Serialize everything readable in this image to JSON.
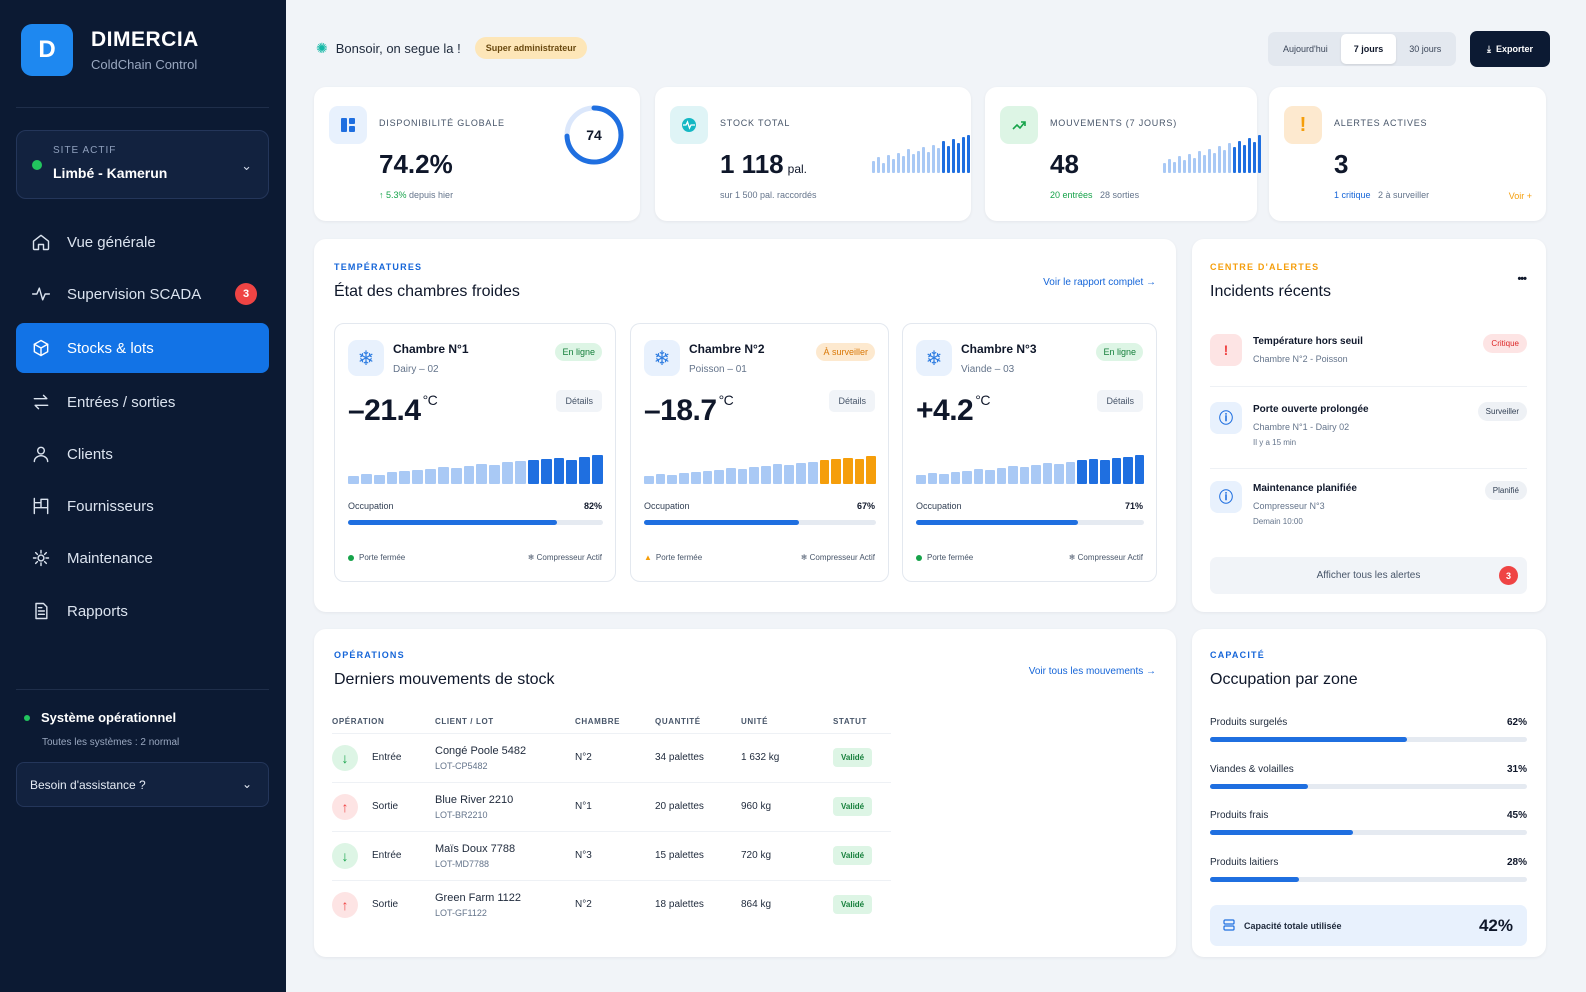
{
  "brand": {
    "name": "DIMERCIA",
    "subtitle": "ColdChain Control",
    "logo_letter": "D"
  },
  "site": {
    "label": "SITE ACTIF",
    "value": "Limbé - Kamerun"
  },
  "nav": [
    {
      "label": "Vue générale",
      "icon": "home-icon"
    },
    {
      "label": "Supervision SCADA",
      "icon": "pulse-icon",
      "badge": "3"
    },
    {
      "label": "Stocks & lots",
      "icon": "box-icon",
      "active": true
    },
    {
      "label": "Entrées / sorties",
      "icon": "arrows-swap-icon"
    },
    {
      "label": "Clients",
      "icon": "user-icon"
    },
    {
      "label": "Fournisseurs",
      "icon": "supplier-icon"
    },
    {
      "label": "Maintenance",
      "icon": "settings-icon"
    },
    {
      "label": "Rapports",
      "icon": "document-icon"
    }
  ],
  "system": {
    "title": "Système opérationnel",
    "subtitle": "Toutes les systèmes : 2 normal"
  },
  "help": {
    "label": "Besoin d'assistance ?"
  },
  "header": {
    "greeting": "Bonsoir, on segue la !",
    "role": "Super administrateur",
    "periods": [
      "Aujourd'hui",
      "7 jours",
      "30 jours"
    ],
    "active_period": "7 jours",
    "export": "Exporter"
  },
  "kpis": {
    "availability": {
      "title": "DISPONIBILITÉ GLOBALE",
      "value": "74.2%",
      "delta": "↑ 5.3%",
      "delta_text": "depuis hier",
      "ring_value": "74",
      "ring_fraction": 0.742
    },
    "stock": {
      "title": "STOCK TOTAL",
      "value": "1 118",
      "unit": "pal.",
      "sub": "sur 1 500 pal. raccordés"
    },
    "movements": {
      "title": "MOUVEMENTS (7 JOURS)",
      "value": "48",
      "in": "20 entrées",
      "out": "28 sorties"
    },
    "alerts": {
      "title": "ALERTES ACTIVES",
      "value": "3",
      "critical": "1 critique",
      "watch": "2 à surveiller",
      "link": "Voir +"
    }
  },
  "temperatures": {
    "tag": "TEMPÉRATURES",
    "title": "État des chambres froides",
    "link": "Voir le rapport complet →",
    "rooms": [
      {
        "name": "Chambre N°1",
        "sub": "Dairy – 02",
        "status": "En ligne",
        "temp": "–21.4",
        "unit": "°C",
        "details": "Détails",
        "occupation_label": "Occupation",
        "occupation": "82%",
        "occupation_fraction": 0.82,
        "door": "Porte fermée",
        "compressor": "❄ Compresseur Actif"
      },
      {
        "name": "Chambre N°2",
        "sub": "Poisson – 01",
        "status": "À surveiller",
        "temp": "–18.7",
        "unit": "°C",
        "details": "Détails",
        "occupation_label": "Occupation",
        "occupation": "67%",
        "occupation_fraction": 0.67,
        "door": "Porte fermée",
        "compressor": "❄ Compresseur Actif"
      },
      {
        "name": "Chambre N°3",
        "sub": "Viande – 03",
        "status": "En ligne",
        "temp": "+4.2",
        "unit": "°C",
        "details": "Détails",
        "occupation_label": "Occupation",
        "occupation": "71%",
        "occupation_fraction": 0.71,
        "door": "Porte fermée",
        "compressor": "❄ Compresseur Actif"
      }
    ]
  },
  "alerts_center": {
    "tag": "CENTRE D'ALERTES",
    "title": "Incidents récents",
    "more": "•••",
    "items": [
      {
        "title": "Température hors seuil",
        "sub": "Chambre N°2 - Poisson",
        "sub2": "",
        "tag": "Critique"
      },
      {
        "title": "Porte ouverte prolongée",
        "sub": "Chambre N°1 - Dairy 02",
        "sub2": "Il y a 15 min",
        "tag": "Surveiller"
      },
      {
        "title": "Maintenance planifiée",
        "sub": "Compresseur N°3",
        "sub2": "Demain 10:00",
        "tag": "Planifié"
      }
    ],
    "all": "Afficher tous les alertes",
    "all_count": "3"
  },
  "operations": {
    "tag": "OPÉRATIONS",
    "title": "Derniers mouvements de stock",
    "link": "Voir tous les mouvements →",
    "headers": [
      "OPÉRATION",
      "CLIENT / LOT",
      "CHAMBRE",
      "QUANTITÉ",
      "UNITÉ",
      "STATUT"
    ],
    "rows": [
      {
        "op": "Entrée",
        "client": "Congé Poole 5482",
        "lot": "LOT-CP5482",
        "room": "N°2",
        "qty": "34 palettes",
        "unit": "1 632 kg",
        "status": "Validé"
      },
      {
        "op": "Sortie",
        "client": "Blue River 2210",
        "lot": "LOT-BR2210",
        "room": "N°1",
        "qty": "20 palettes",
        "unit": "960 kg",
        "status": "Validé"
      },
      {
        "op": "Entrée",
        "client": "Maïs Doux 7788",
        "lot": "LOT-MD7788",
        "room": "N°3",
        "qty": "15 palettes",
        "unit": "720 kg",
        "status": "Validé"
      },
      {
        "op": "Sortie",
        "client": "Green Farm 1122",
        "lot": "LOT-GF1122",
        "room": "N°2",
        "qty": "18 palettes",
        "unit": "864 kg",
        "status": "Validé"
      }
    ]
  },
  "capacity": {
    "tag": "CAPACITÉ",
    "title": "Occupation par zone",
    "zones": [
      {
        "label": "Produits surgelés",
        "value": "62%",
        "fraction": 0.62
      },
      {
        "label": "Viandes & volailles",
        "value": "31%",
        "fraction": 0.31
      },
      {
        "label": "Produits frais",
        "value": "45%",
        "fraction": 0.45
      },
      {
        "label": "Produits laitiers",
        "value": "28%",
        "fraction": 0.28
      }
    ],
    "total_label": "Capacité totale utilisée",
    "total_value": "42%"
  },
  "colors": {
    "accent": "#1273e6",
    "sidebar": "#0c1a33",
    "success": "#16a34a",
    "warning": "#f59e0b",
    "danger": "#ef4444"
  }
}
